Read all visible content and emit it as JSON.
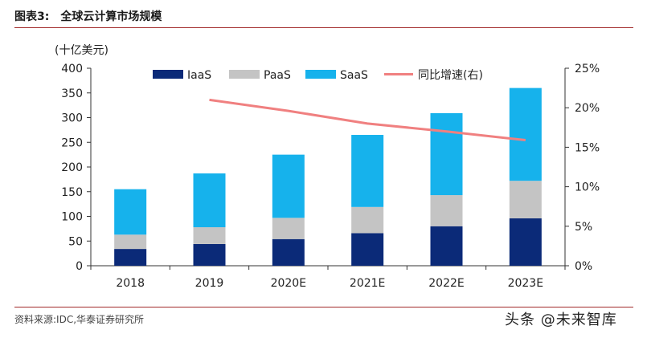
{
  "figure": {
    "number": "图表3:",
    "title": "全球云计算市场规模"
  },
  "source": "资料来源:IDC,华泰证券研究所",
  "watermark": "头条 @未来智库",
  "colors": {
    "IaaS": "#0b2a78",
    "PaaS": "#c4c4c4",
    "SaaS": "#16b2ec",
    "growth": "#f08080",
    "accent": "#a22a2a"
  },
  "chart_data": {
    "type": "bar",
    "stacked": true,
    "unit_label": "(十亿美元)",
    "categories": [
      "2018",
      "2019",
      "2020E",
      "2021E",
      "2022E",
      "2023E"
    ],
    "series": [
      {
        "name": "IaaS",
        "type": "bar",
        "axis": "left",
        "values": [
          34,
          44,
          54,
          66,
          80,
          96
        ]
      },
      {
        "name": "PaaS",
        "type": "bar",
        "axis": "left",
        "values": [
          29,
          34,
          43,
          53,
          63,
          76
        ]
      },
      {
        "name": "SaaS",
        "type": "bar",
        "axis": "left",
        "values": [
          92,
          109,
          128,
          146,
          166,
          188
        ]
      },
      {
        "name": "同比增速(右)",
        "type": "line",
        "axis": "right",
        "values": [
          null,
          0.21,
          0.196,
          0.18,
          0.17,
          0.159
        ]
      }
    ],
    "y_left": {
      "min": 0,
      "max": 400,
      "ticks": [
        0,
        50,
        100,
        150,
        200,
        250,
        300,
        350,
        400
      ]
    },
    "y_right": {
      "min": 0,
      "max": 0.25,
      "ticks": [
        "0%",
        "5%",
        "10%",
        "15%",
        "20%",
        "25%"
      ]
    },
    "legend": "top",
    "grid": false
  }
}
